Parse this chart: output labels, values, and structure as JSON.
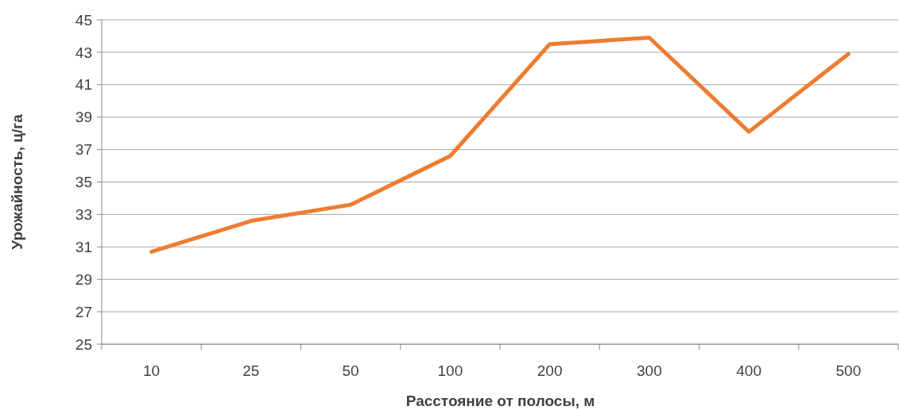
{
  "chart_data": {
    "type": "line",
    "xlabel": "Расстояние от полосы, м",
    "ylabel": "Урожайность, ц/га",
    "categories": [
      "10",
      "25",
      "50",
      "100",
      "200",
      "300",
      "400",
      "500"
    ],
    "series": [
      {
        "color": "#ed7d31",
        "values": [
          30.7,
          32.6,
          33.6,
          36.6,
          43.5,
          43.9,
          38.1,
          42.9
        ]
      }
    ],
    "ylim": [
      25,
      45
    ],
    "yticks": [
      25,
      27,
      29,
      31,
      33,
      35,
      37,
      39,
      41,
      43,
      45
    ],
    "grid": "y",
    "marker": "none",
    "line_style": "solid"
  }
}
